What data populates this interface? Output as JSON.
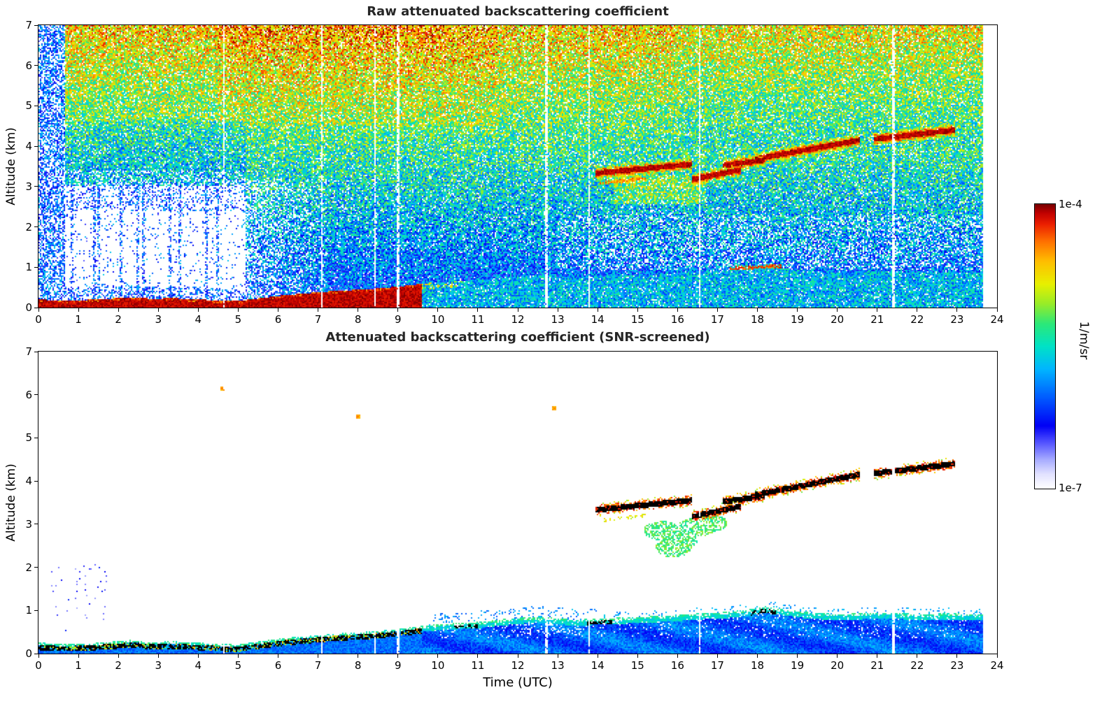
{
  "figure": {
    "background": "#ffffff",
    "colorbar": {
      "max_label": "1e-4",
      "min_label": "1e-7",
      "unit_label": "1/m/sr"
    },
    "colormap_stops": [
      [
        0.0,
        [
          255,
          255,
          255
        ]
      ],
      [
        0.05,
        [
          226,
          226,
          255
        ]
      ],
      [
        0.1,
        [
          168,
          172,
          255
        ]
      ],
      [
        0.16,
        [
          84,
          84,
          255
        ]
      ],
      [
        0.22,
        [
          0,
          0,
          245
        ]
      ],
      [
        0.32,
        [
          0,
          92,
          255
        ]
      ],
      [
        0.42,
        [
          0,
          182,
          255
        ]
      ],
      [
        0.5,
        [
          0,
          226,
          198
        ]
      ],
      [
        0.58,
        [
          44,
          232,
          120
        ]
      ],
      [
        0.65,
        [
          152,
          236,
          40
        ]
      ],
      [
        0.72,
        [
          232,
          240,
          0
        ]
      ],
      [
        0.8,
        [
          255,
          190,
          0
        ]
      ],
      [
        0.87,
        [
          255,
          112,
          0
        ]
      ],
      [
        0.93,
        [
          236,
          32,
          0
        ]
      ],
      [
        0.97,
        [
          192,
          0,
          0
        ]
      ],
      [
        1.0,
        [
          122,
          0,
          0
        ]
      ]
    ]
  },
  "chart_data": [
    {
      "type": "heatmap",
      "title": "Raw attenuated backscattering coefficient",
      "xlabel": "",
      "ylabel": "Altitude (km)",
      "xlim": [
        0,
        24
      ],
      "ylim": [
        0,
        7
      ],
      "xticks": [
        0,
        1,
        2,
        3,
        4,
        5,
        6,
        7,
        8,
        9,
        10,
        11,
        12,
        13,
        14,
        15,
        16,
        17,
        18,
        19,
        20,
        21,
        22,
        23,
        24
      ],
      "yticks": [
        0,
        1,
        2,
        3,
        4,
        5,
        6,
        7
      ],
      "value_scale": {
        "min": "1e-7",
        "max": "1e-4",
        "unit": "1/m/sr",
        "scale": "log"
      },
      "data_end_utc": 23.65,
      "gap_times_utc": [
        4.65,
        7.1,
        8.42,
        9.0,
        12.72,
        13.78,
        16.55,
        21.4
      ],
      "boundary_layer_top_km": [
        [
          0,
          0.2
        ],
        [
          0.7,
          0.17
        ],
        [
          1.2,
          0.19
        ],
        [
          1.8,
          0.22
        ],
        [
          2.3,
          0.26
        ],
        [
          2.8,
          0.22
        ],
        [
          3.4,
          0.23
        ],
        [
          4.0,
          0.2
        ],
        [
          4.6,
          0.17
        ],
        [
          5.0,
          0.16
        ],
        [
          5.6,
          0.24
        ],
        [
          6.2,
          0.31
        ],
        [
          6.8,
          0.36
        ],
        [
          7.4,
          0.41
        ],
        [
          8.0,
          0.44
        ],
        [
          8.6,
          0.48
        ],
        [
          9.2,
          0.54
        ],
        [
          9.7,
          0.6
        ],
        [
          10.3,
          0.65
        ],
        [
          11.0,
          0.68
        ],
        [
          11.6,
          0.74
        ],
        [
          12.2,
          0.79
        ],
        [
          12.8,
          0.79
        ],
        [
          13.4,
          0.73
        ],
        [
          14.0,
          0.76
        ],
        [
          14.8,
          0.79
        ],
        [
          15.6,
          0.82
        ],
        [
          16.4,
          0.87
        ],
        [
          17.2,
          0.91
        ],
        [
          17.8,
          0.97
        ],
        [
          18.2,
          1.04
        ],
        [
          18.6,
          0.98
        ],
        [
          19.2,
          0.91
        ],
        [
          20.0,
          0.86
        ],
        [
          20.8,
          0.89
        ],
        [
          21.4,
          0.9
        ],
        [
          22.0,
          0.86
        ],
        [
          22.8,
          0.88
        ],
        [
          23.65,
          0.86
        ]
      ],
      "surface_saturated_layer_end_utc": 9.6,
      "blue_column_zone": {
        "t0": 0,
        "t1": 0.65
      },
      "clear_zone": {
        "t0": 0.65,
        "t1": 5.2,
        "alt_max": 3.0,
        "stripe_times_utc": [
          0.85,
          1.4,
          1.5,
          2.05,
          2.5,
          2.62,
          3.3,
          3.55,
          4.2,
          4.5
        ]
      },
      "cloud_tracks": [
        {
          "t0": 13.95,
          "t1": 16.35,
          "alt0": 3.33,
          "alt1": 3.55
        },
        {
          "t0": 16.35,
          "t1": 17.6,
          "alt0": 3.17,
          "alt1": 3.42
        },
        {
          "t0": 17.15,
          "t1": 18.2,
          "alt0": 3.52,
          "alt1": 3.66
        },
        {
          "t0": 17.95,
          "t1": 20.55,
          "alt0": 3.68,
          "alt1": 4.15
        },
        {
          "t0": 20.9,
          "t1": 22.95,
          "alt0": 4.17,
          "alt1": 4.4
        }
      ],
      "thin_aerosol_track": {
        "t0": 14.05,
        "t1": 15.2,
        "alt0": 3.08,
        "alt1": 3.2
      },
      "green_enhancement": {
        "t0": 14.4,
        "t1": 16.7,
        "alt0": 2.55,
        "alt1": 3.3
      },
      "bl_top_streak": {
        "t0": 17.3,
        "t1": 18.6,
        "alt0": 0.97,
        "alt1": 1.03
      }
    },
    {
      "type": "heatmap",
      "title": "Attenuated backscattering coefficient (SNR-screened)",
      "xlabel": "Time (UTC)",
      "ylabel": "Altitude (km)",
      "xlim": [
        0,
        24
      ],
      "ylim": [
        0,
        7
      ],
      "xticks": [
        0,
        1,
        2,
        3,
        4,
        5,
        6,
        7,
        8,
        9,
        10,
        11,
        12,
        13,
        14,
        15,
        16,
        17,
        18,
        19,
        20,
        21,
        22,
        23,
        24
      ],
      "yticks": [
        0,
        1,
        2,
        3,
        4,
        5,
        6,
        7
      ],
      "value_scale": {
        "min": "1e-7",
        "max": "1e-4",
        "unit": "1/m/sr",
        "scale": "log"
      },
      "data_end_utc": 23.65,
      "gap_times_utc": [
        4.65,
        7.1,
        8.42,
        9.0,
        12.72,
        13.78,
        16.55,
        21.4
      ],
      "boundary_layer_top_km": [
        [
          0,
          0.2
        ],
        [
          0.7,
          0.17
        ],
        [
          1.2,
          0.19
        ],
        [
          1.8,
          0.22
        ],
        [
          2.3,
          0.26
        ],
        [
          2.8,
          0.22
        ],
        [
          3.4,
          0.23
        ],
        [
          4.0,
          0.2
        ],
        [
          4.6,
          0.17
        ],
        [
          5.0,
          0.16
        ],
        [
          5.6,
          0.24
        ],
        [
          6.2,
          0.31
        ],
        [
          6.8,
          0.36
        ],
        [
          7.4,
          0.41
        ],
        [
          8.0,
          0.44
        ],
        [
          8.6,
          0.48
        ],
        [
          9.2,
          0.54
        ],
        [
          9.7,
          0.6
        ],
        [
          10.3,
          0.65
        ],
        [
          11.0,
          0.68
        ],
        [
          11.6,
          0.74
        ],
        [
          12.2,
          0.79
        ],
        [
          12.8,
          0.79
        ],
        [
          13.4,
          0.73
        ],
        [
          14.0,
          0.76
        ],
        [
          14.8,
          0.79
        ],
        [
          15.6,
          0.82
        ],
        [
          16.4,
          0.87
        ],
        [
          17.2,
          0.91
        ],
        [
          17.8,
          0.97
        ],
        [
          18.2,
          1.04
        ],
        [
          18.6,
          0.98
        ],
        [
          19.2,
          0.91
        ],
        [
          20.0,
          0.86
        ],
        [
          20.8,
          0.89
        ],
        [
          21.4,
          0.9
        ],
        [
          22.0,
          0.86
        ],
        [
          22.8,
          0.88
        ],
        [
          23.65,
          0.86
        ]
      ],
      "surface_saturated_layer_end_utc": 9.6,
      "cloud_tracks": [
        {
          "t0": 13.95,
          "t1": 16.35,
          "alt0": 3.33,
          "alt1": 3.55
        },
        {
          "t0": 16.35,
          "t1": 17.6,
          "alt0": 3.17,
          "alt1": 3.42
        },
        {
          "t0": 17.15,
          "t1": 18.2,
          "alt0": 3.52,
          "alt1": 3.66
        },
        {
          "t0": 17.95,
          "t1": 20.55,
          "alt0": 3.68,
          "alt1": 4.15
        },
        {
          "t0": 20.9,
          "t1": 22.95,
          "alt0": 4.17,
          "alt1": 4.4
        }
      ],
      "thin_aerosol_track": {
        "t0": 14.05,
        "t1": 15.2,
        "alt0": 3.08,
        "alt1": 3.2
      },
      "green_patches": [
        [
          15.6,
          2.85
        ],
        [
          16.05,
          2.62
        ],
        [
          16.45,
          2.92
        ],
        [
          16.8,
          3.02
        ],
        [
          15.9,
          2.45
        ]
      ],
      "speckle_line": {
        "t0": 16.7,
        "t1": 18.5,
        "alt0": 3.3,
        "alt1": 3.9
      },
      "black_dash_ranges_utc": [
        [
          10.4,
          11.0
        ],
        [
          13.75,
          14.35
        ],
        [
          17.85,
          18.45
        ]
      ],
      "isolated_dots": [
        [
          4.6,
          6.15
        ],
        [
          8.0,
          5.5
        ],
        [
          12.9,
          5.7
        ]
      ]
    }
  ]
}
